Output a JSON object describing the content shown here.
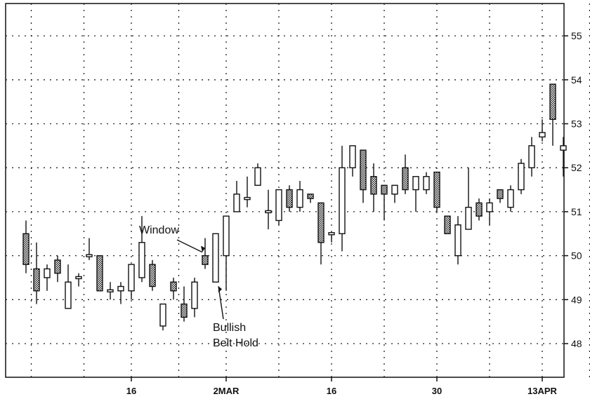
{
  "chart_data": {
    "type": "candlestick",
    "title": "",
    "xlabel": "",
    "ylabel": "",
    "ylim": [
      47.2,
      55.8
    ],
    "y_ticks": [
      48,
      49,
      50,
      51,
      52,
      53,
      54,
      55
    ],
    "y_tick_labels": [
      "48",
      "49",
      "50",
      "51",
      "52",
      "53",
      "54",
      "55"
    ],
    "y_axis_side": "right",
    "grid": true,
    "grid_style": "dotted",
    "x_tick_labels": [
      {
        "index": 10,
        "label": "16"
      },
      {
        "index": 19,
        "label": "2MAR"
      },
      {
        "index": 29,
        "label": "16"
      },
      {
        "index": 39,
        "label": "30"
      },
      {
        "index": 49,
        "label": "13APR"
      }
    ],
    "x_grid_indices": [
      0.5,
      5.5,
      10,
      14.5,
      19,
      24,
      29,
      34,
      39,
      44,
      49,
      53.5
    ],
    "x_range": [
      -1.5,
      52.8
    ],
    "candles": [
      {
        "o": 50.5,
        "h": 50.8,
        "l": 49.6,
        "c": 49.8,
        "dark": true
      },
      {
        "o": 49.7,
        "h": 50.3,
        "l": 48.9,
        "c": 49.2,
        "dark": true
      },
      {
        "o": 49.5,
        "h": 49.8,
        "l": 49.2,
        "c": 49.7,
        "dark": false
      },
      {
        "o": 49.9,
        "h": 50.0,
        "l": 49.4,
        "c": 49.6,
        "dark": true
      },
      {
        "o": 48.8,
        "h": 49.8,
        "l": 48.8,
        "c": 49.4,
        "dark": false
      },
      {
        "o": 49.5,
        "h": 49.6,
        "l": 49.3,
        "c": 49.5,
        "dark": false
      },
      {
        "o": 50.0,
        "h": 50.4,
        "l": 49.9,
        "c": 50.0,
        "dark": false
      },
      {
        "o": 50.0,
        "h": 50.0,
        "l": 49.2,
        "c": 49.2,
        "dark": true
      },
      {
        "o": 49.2,
        "h": 49.4,
        "l": 49.0,
        "c": 49.2,
        "dark": false
      },
      {
        "o": 49.2,
        "h": 49.4,
        "l": 48.9,
        "c": 49.3,
        "dark": false
      },
      {
        "o": 49.2,
        "h": 49.8,
        "l": 49.0,
        "c": 49.8,
        "dark": false
      },
      {
        "o": 49.5,
        "h": 50.9,
        "l": 49.4,
        "c": 50.3,
        "dark": false
      },
      {
        "o": 49.8,
        "h": 49.9,
        "l": 49.2,
        "c": 49.3,
        "dark": true
      },
      {
        "o": 48.4,
        "h": 48.9,
        "l": 48.3,
        "c": 48.9,
        "dark": false
      },
      {
        "o": 49.4,
        "h": 49.5,
        "l": 49.0,
        "c": 49.2,
        "dark": true
      },
      {
        "o": 48.9,
        "h": 49.3,
        "l": 48.5,
        "c": 48.6,
        "dark": true
      },
      {
        "o": 48.8,
        "h": 49.5,
        "l": 48.6,
        "c": 49.4,
        "dark": false
      },
      {
        "o": 50.0,
        "h": 50.4,
        "l": 49.7,
        "c": 49.8,
        "dark": true
      },
      {
        "o": 49.4,
        "h": 50.5,
        "l": 49.4,
        "c": 50.5,
        "dark": false
      },
      {
        "o": 50.0,
        "h": 50.9,
        "l": 49.2,
        "c": 50.9,
        "dark": false
      },
      {
        "o": 51.0,
        "h": 51.7,
        "l": 51.0,
        "c": 51.4,
        "dark": false
      },
      {
        "o": 51.3,
        "h": 51.8,
        "l": 51.1,
        "c": 51.3,
        "dark": false
      },
      {
        "o": 51.6,
        "h": 52.1,
        "l": 51.6,
        "c": 52.0,
        "dark": false
      },
      {
        "o": 51.0,
        "h": 51.5,
        "l": 50.6,
        "c": 51.0,
        "dark": false
      },
      {
        "o": 51.5,
        "h": 51.5,
        "l": 50.7,
        "c": 50.8,
        "dark": false
      },
      {
        "o": 51.5,
        "h": 51.6,
        "l": 51.0,
        "c": 51.1,
        "dark": true
      },
      {
        "o": 51.5,
        "h": 51.7,
        "l": 51.0,
        "c": 51.1,
        "dark": false
      },
      {
        "o": 51.4,
        "h": 51.4,
        "l": 51.2,
        "c": 51.3,
        "dark": true
      },
      {
        "o": 51.2,
        "h": 51.2,
        "l": 49.8,
        "c": 50.3,
        "dark": true
      },
      {
        "o": 50.5,
        "h": 50.5,
        "l": 50.3,
        "c": 50.5,
        "dark": false
      },
      {
        "o": 50.5,
        "h": 52.5,
        "l": 50.1,
        "c": 52.0,
        "dark": false
      },
      {
        "o": 52.0,
        "h": 52.5,
        "l": 51.8,
        "c": 52.5,
        "dark": false
      },
      {
        "o": 52.4,
        "h": 52.4,
        "l": 51.2,
        "c": 51.5,
        "dark": true
      },
      {
        "o": 51.8,
        "h": 52.1,
        "l": 51.0,
        "c": 51.4,
        "dark": true
      },
      {
        "o": 51.6,
        "h": 51.6,
        "l": 50.8,
        "c": 51.4,
        "dark": true
      },
      {
        "o": 51.4,
        "h": 51.6,
        "l": 51.2,
        "c": 51.6,
        "dark": false
      },
      {
        "o": 52.0,
        "h": 52.3,
        "l": 51.4,
        "c": 51.5,
        "dark": true
      },
      {
        "o": 51.5,
        "h": 51.8,
        "l": 51.0,
        "c": 51.8,
        "dark": false
      },
      {
        "o": 51.5,
        "h": 51.9,
        "l": 51.4,
        "c": 51.8,
        "dark": false
      },
      {
        "o": 51.9,
        "h": 51.9,
        "l": 51.0,
        "c": 51.1,
        "dark": true
      },
      {
        "o": 50.9,
        "h": 50.9,
        "l": 50.5,
        "c": 50.5,
        "dark": true
      },
      {
        "o": 50.0,
        "h": 50.9,
        "l": 49.8,
        "c": 50.7,
        "dark": false
      },
      {
        "o": 50.6,
        "h": 52.0,
        "l": 50.6,
        "c": 51.1,
        "dark": false
      },
      {
        "o": 51.2,
        "h": 51.3,
        "l": 50.8,
        "c": 50.9,
        "dark": true
      },
      {
        "o": 51.0,
        "h": 51.3,
        "l": 50.7,
        "c": 51.2,
        "dark": false
      },
      {
        "o": 51.5,
        "h": 51.5,
        "l": 51.2,
        "c": 51.3,
        "dark": true
      },
      {
        "o": 51.1,
        "h": 51.6,
        "l": 51.0,
        "c": 51.5,
        "dark": false
      },
      {
        "o": 51.5,
        "h": 52.2,
        "l": 51.4,
        "c": 52.1,
        "dark": false
      },
      {
        "o": 52.0,
        "h": 52.7,
        "l": 51.8,
        "c": 52.5,
        "dark": false
      },
      {
        "o": 52.7,
        "h": 53.1,
        "l": 52.6,
        "c": 52.8,
        "dark": false
      },
      {
        "o": 53.9,
        "h": 53.9,
        "l": 52.5,
        "c": 53.1,
        "dark": true
      },
      {
        "o": 52.5,
        "h": 52.7,
        "l": 51.8,
        "c": 52.4,
        "dark": false
      }
    ],
    "annotations": [
      {
        "lines": [
          "Window"
        ],
        "target_index": 17
      },
      {
        "lines": [
          "Bullish",
          "Belt Hold"
        ],
        "target_index": 18
      }
    ]
  }
}
